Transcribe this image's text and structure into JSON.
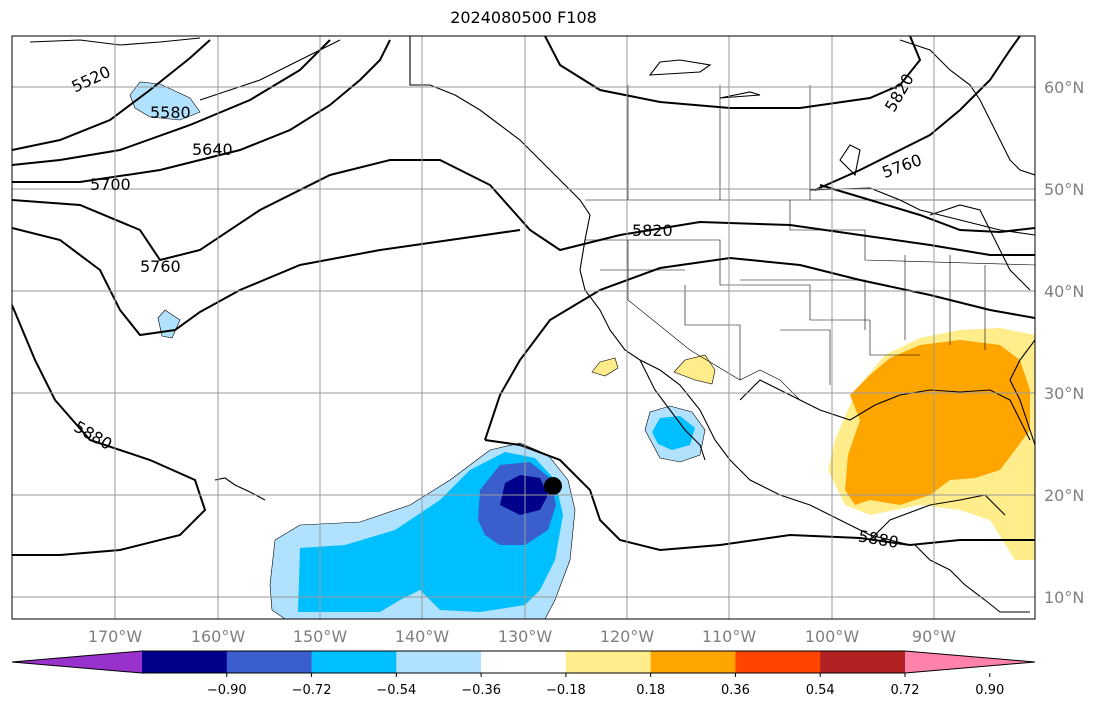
{
  "title": "2024080500 F108",
  "map": {
    "lon_ticks": [
      "170°W",
      "160°W",
      "150°W",
      "140°W",
      "130°W",
      "120°W",
      "110°W",
      "100°W",
      "90°W"
    ],
    "lat_ticks": [
      "60°N",
      "50°N",
      "40°N",
      "30°N",
      "20°N",
      "10°N"
    ],
    "contour_labels": [
      "5520",
      "5580",
      "5640",
      "5700",
      "5760",
      "5820",
      "5820",
      "5760",
      "5880",
      "5880"
    ],
    "marker": "storm-center-dot"
  },
  "colorbar": {
    "colors": [
      "#9932CC",
      "#00008B",
      "#3A5FCD",
      "#00BFFF",
      "#B0E2FF",
      "#FFFFFF",
      "#FFEC8B",
      "#FFA500",
      "#FF4500",
      "#B22222",
      "#FF82AB"
    ],
    "labels": [
      "−0.90",
      "−0.72",
      "−0.54",
      "−0.36",
      "−0.18",
      "0.18",
      "0.36",
      "0.54",
      "0.72",
      "0.90"
    ]
  }
}
